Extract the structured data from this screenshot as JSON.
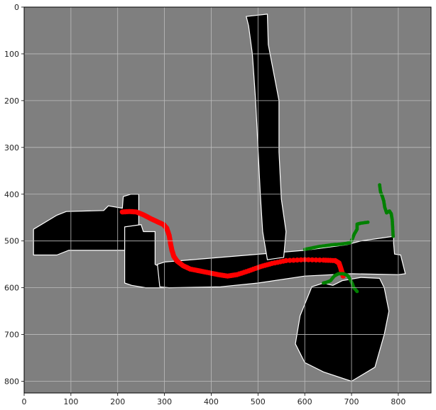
{
  "chart_data": {
    "type": "scatter",
    "xlim": [
      0,
      870
    ],
    "ylim": [
      825,
      0
    ],
    "xticks": [
      0,
      100,
      200,
      300,
      400,
      500,
      600,
      700,
      800
    ],
    "yticks": [
      0,
      100,
      200,
      300,
      400,
      500,
      600,
      700,
      800
    ],
    "grid": true,
    "colors": {
      "background": "#7f7f7f",
      "free_space": "#000000",
      "obstacle_edge": "#ffffff",
      "path": "#ff0000",
      "trail": "#008000",
      "grid": "#bdbdbd"
    },
    "map_regions": [
      {
        "name": "left-wing",
        "polygon": [
          [
            20,
            475
          ],
          [
            70,
            445
          ],
          [
            90,
            437
          ],
          [
            170,
            435
          ],
          [
            180,
            425
          ],
          [
            210,
            430
          ],
          [
            212,
            405
          ],
          [
            228,
            400
          ],
          [
            245,
            400
          ],
          [
            245,
            470
          ],
          [
            230,
            480
          ],
          [
            230,
            520
          ],
          [
            95,
            520
          ],
          [
            70,
            530
          ],
          [
            20,
            530
          ]
        ]
      },
      {
        "name": "middle-block",
        "polygon": [
          [
            215,
            470
          ],
          [
            250,
            465
          ],
          [
            255,
            480
          ],
          [
            280,
            480
          ],
          [
            280,
            550
          ],
          [
            300,
            560
          ],
          [
            300,
            600
          ],
          [
            260,
            600
          ],
          [
            230,
            595
          ],
          [
            215,
            590
          ],
          [
            215,
            520
          ]
        ]
      },
      {
        "name": "main-corridor",
        "polygon": [
          [
            285,
            550
          ],
          [
            300,
            545
          ],
          [
            600,
            520
          ],
          [
            690,
            508
          ],
          [
            720,
            500
          ],
          [
            790,
            490
          ],
          [
            790,
            505
          ],
          [
            792,
            528
          ],
          [
            805,
            530
          ],
          [
            815,
            570
          ],
          [
            800,
            572
          ],
          [
            700,
            570
          ],
          [
            600,
            575
          ],
          [
            500,
            590
          ],
          [
            420,
            598
          ],
          [
            310,
            600
          ],
          [
            290,
            598
          ]
        ]
      },
      {
        "name": "vertical-corridor",
        "polygon": [
          [
            475,
            20
          ],
          [
            520,
            15
          ],
          [
            522,
            80
          ],
          [
            545,
            200
          ],
          [
            545,
            310
          ],
          [
            550,
            410
          ],
          [
            560,
            480
          ],
          [
            555,
            535
          ],
          [
            520,
            540
          ],
          [
            510,
            480
          ],
          [
            505,
            400
          ],
          [
            500,
            300
          ],
          [
            495,
            200
          ],
          [
            488,
            100
          ],
          [
            480,
            40
          ]
        ]
      },
      {
        "name": "lower-fan",
        "polygon": [
          [
            615,
            598
          ],
          [
            640,
            590
          ],
          [
            660,
            595
          ],
          [
            680,
            585
          ],
          [
            720,
            578
          ],
          [
            760,
            580
          ],
          [
            770,
            600
          ],
          [
            780,
            650
          ],
          [
            770,
            700
          ],
          [
            750,
            770
          ],
          [
            700,
            800
          ],
          [
            640,
            780
          ],
          [
            600,
            760
          ],
          [
            580,
            720
          ],
          [
            590,
            660
          ]
        ]
      }
    ],
    "series": [
      {
        "color": "#ff0000",
        "points": [
          [
            210,
            438
          ],
          [
            225,
            437
          ],
          [
            240,
            438
          ],
          [
            255,
            444
          ],
          [
            270,
            452
          ],
          [
            285,
            459
          ],
          [
            298,
            465
          ],
          [
            305,
            473
          ],
          [
            310,
            488
          ],
          [
            313,
            505
          ],
          [
            316,
            520
          ],
          [
            320,
            533
          ],
          [
            327,
            543
          ],
          [
            340,
            553
          ],
          [
            355,
            560
          ],
          [
            375,
            564
          ],
          [
            395,
            568
          ],
          [
            415,
            572
          ],
          [
            435,
            575
          ],
          [
            455,
            572
          ],
          [
            480,
            564
          ],
          [
            505,
            555
          ],
          [
            530,
            548
          ],
          [
            560,
            542
          ],
          [
            600,
            540
          ],
          [
            640,
            541
          ],
          [
            665,
            542
          ],
          [
            673,
            547
          ],
          [
            676,
            555
          ],
          [
            679,
            565
          ],
          [
            682,
            575
          ]
        ]
      },
      {
        "color": "#008000",
        "points": [
          [
            600,
            518
          ],
          [
            615,
            515
          ],
          [
            630,
            512
          ],
          [
            645,
            510
          ],
          [
            660,
            508
          ],
          [
            675,
            507
          ],
          [
            690,
            505
          ],
          [
            698,
            503
          ],
          [
            702,
            495
          ],
          [
            706,
            485
          ],
          [
            712,
            475
          ],
          [
            712,
            464
          ],
          [
            720,
            462
          ],
          [
            735,
            460
          ]
        ]
      },
      {
        "color": "#008000",
        "points": [
          [
            760,
            380
          ],
          [
            762,
            395
          ],
          [
            766,
            405
          ],
          [
            769,
            415
          ],
          [
            771,
            428
          ],
          [
            775,
            440
          ],
          [
            781,
            436
          ],
          [
            785,
            442
          ],
          [
            787,
            455
          ],
          [
            788,
            472
          ],
          [
            789,
            490
          ]
        ]
      },
      {
        "color": "#008000",
        "points": [
          [
            640,
            590
          ],
          [
            648,
            588
          ],
          [
            655,
            585
          ],
          [
            663,
            575
          ],
          [
            672,
            570
          ],
          [
            683,
            570
          ],
          [
            692,
            574
          ],
          [
            697,
            582
          ],
          [
            702,
            592
          ],
          [
            705,
            600
          ],
          [
            712,
            608
          ]
        ]
      }
    ]
  }
}
